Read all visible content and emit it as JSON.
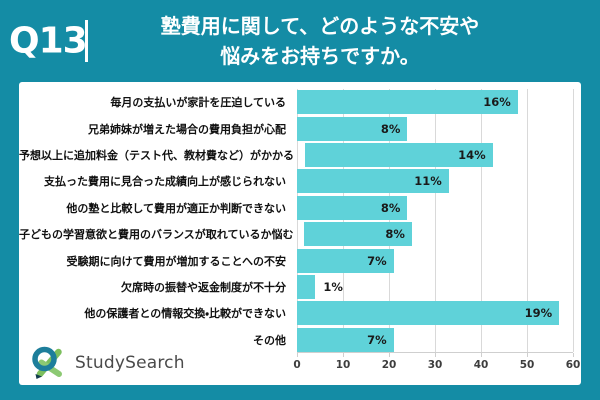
{
  "header": {
    "question_number": "Q13",
    "title_line1": "塾費用に関して、どのような不安や",
    "title_line2": "悩みをお持ちですか。"
  },
  "logo": {
    "text": "StudySearch"
  },
  "chart_data": {
    "type": "bar",
    "orientation": "horizontal",
    "title": "塾費用に関して、どのような不安や悩みをお持ちですか。",
    "categories": [
      "毎月の支払いが家計を圧迫している",
      "兄弟姉妹が増えた場合の費用負担が心配",
      "予想以上に追加料金（テスト代、教材費など）がかかる",
      "支払った費用に見合った成績向上が感じられない",
      "他の塾と比較して費用が適正か判断できない",
      "子どもの学習意欲と費用のバランスが取れているか悩む",
      "受験期に向けて費用が増加することへの不安",
      "欠席時の振替や返金制度が不十分",
      "他の保護者との情報交換・比較ができない",
      "その他"
    ],
    "labels": [
      "16%",
      "8%",
      "14%",
      "11%",
      "8%",
      "8%",
      "7%",
      "1%",
      "19%",
      "7%"
    ],
    "percentages": [
      16,
      8,
      14,
      11,
      8,
      8,
      7,
      1,
      19,
      7
    ],
    "values": [
      48,
      24,
      42,
      33,
      24,
      24,
      21,
      4,
      57,
      21
    ],
    "x_ticks": [
      0,
      10,
      20,
      30,
      40,
      50,
      60
    ],
    "xlim": [
      0,
      60
    ],
    "grid": true,
    "legend": "none"
  },
  "colors": {
    "header_bg": "#148CA5",
    "bar_color": "#5FD2D9",
    "grid_color": "#d9d9d9",
    "label_color": "#111111",
    "pct_color": "#1a1a1a",
    "tick_color": "#3d3d3d"
  }
}
